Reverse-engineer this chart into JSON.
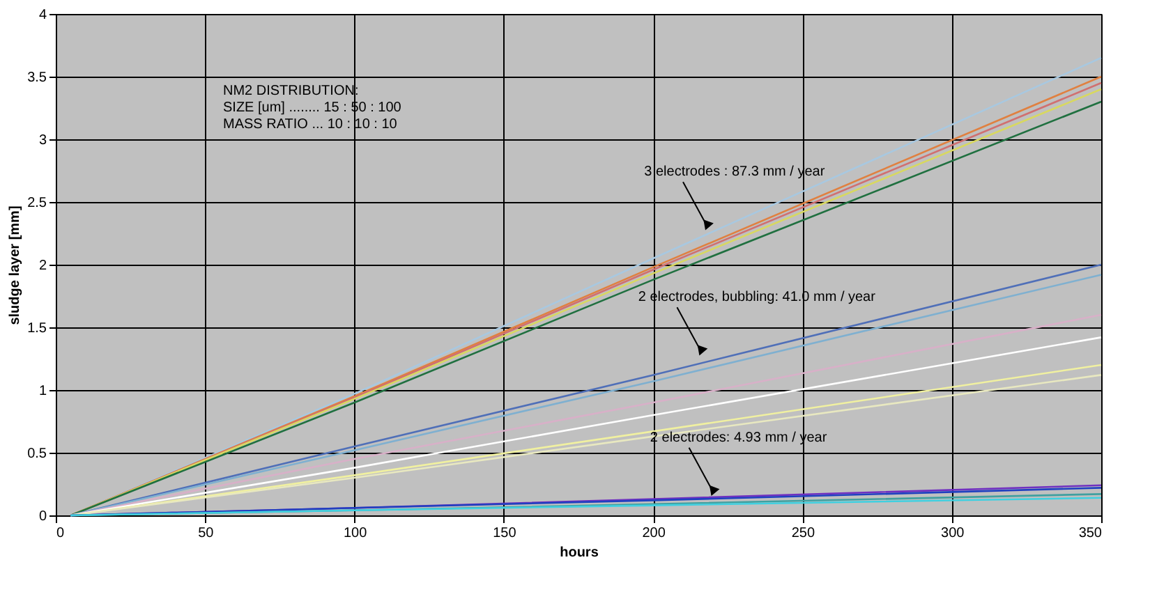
{
  "chart_data": {
    "type": "line",
    "xlabel": "hours",
    "ylabel": "sludge layer [mm]",
    "xlim": [
      0,
      350
    ],
    "xticks": [
      0,
      50,
      100,
      150,
      200,
      250,
      300,
      350
    ],
    "ylim": [
      0,
      4
    ],
    "yticks": [
      0,
      0.5,
      1,
      1.5,
      2,
      2.5,
      3,
      3.5,
      4
    ],
    "grid": true,
    "legend": false,
    "marker": "none",
    "line_style": "solid",
    "x": [
      5,
      100,
      200,
      350
    ],
    "series": [
      {
        "color": "#a8c8e0",
        "values": [
          0,
          0.97,
          2.05,
          3.65
        ]
      },
      {
        "color": "#e08040",
        "values": [
          0,
          0.95,
          1.98,
          3.5
        ]
      },
      {
        "color": "#d07070",
        "values": [
          0,
          0.94,
          1.96,
          3.45
        ]
      },
      {
        "color": "#d8d860",
        "values": [
          0,
          0.93,
          1.93,
          3.4
        ]
      },
      {
        "color": "#207040",
        "values": [
          0,
          0.9,
          1.88,
          3.3
        ]
      },
      {
        "color": "#4f6fb8",
        "values": [
          0,
          0.55,
          1.12,
          2.0
        ]
      },
      {
        "color": "#7fb0d0",
        "values": [
          0,
          0.52,
          1.07,
          1.92
        ]
      },
      {
        "color": "#d8b0c8",
        "values": [
          0,
          0.45,
          0.9,
          1.6
        ]
      },
      {
        "color": "#ffffff",
        "values": [
          0,
          0.38,
          0.8,
          1.42
        ]
      },
      {
        "color": "#f0f0a0",
        "values": [
          0,
          0.32,
          0.67,
          1.2
        ]
      },
      {
        "color": "#e8e8c0",
        "values": [
          0,
          0.3,
          0.63,
          1.12
        ]
      },
      {
        "color": "#7030c0",
        "values": [
          0,
          0.06,
          0.13,
          0.24
        ]
      },
      {
        "color": "#2040c0",
        "values": [
          0,
          0.06,
          0.12,
          0.22
        ]
      },
      {
        "color": "#40a0a0",
        "values": [
          0,
          0.04,
          0.09,
          0.17
        ]
      },
      {
        "color": "#40d0e0",
        "values": [
          0,
          0.04,
          0.08,
          0.14
        ]
      }
    ],
    "annotations": [
      "NM2  DISTRIBUTION:\nSIZE [um] ........ 15 : 50 : 100\nMASS RATIO ... 10 : 10 : 10",
      {
        "text": "3 electrodes : 87.3 mm / year",
        "x": 218,
        "y": 2.31
      },
      {
        "text": "2 electrodes, bubbling: 41.0 mm / year",
        "x": 216,
        "y": 1.31
      },
      {
        "text": "2 electrodes: 4.93 mm / year",
        "x": 220,
        "y": 0.19
      }
    ]
  }
}
